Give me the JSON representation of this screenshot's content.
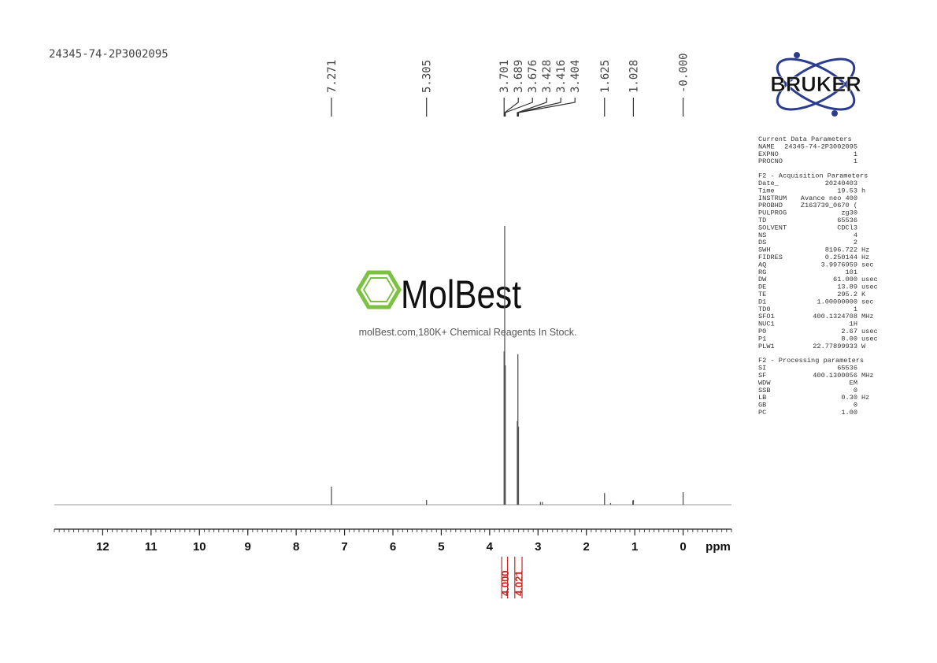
{
  "chart_data": {
    "type": "nmr",
    "title": "24345-74-2P3002095",
    "x_label": "ppm",
    "xlim": [
      13,
      -1
    ],
    "xticks": [
      12,
      11,
      10,
      9,
      8,
      7,
      6,
      5,
      4,
      3,
      2,
      1,
      0
    ],
    "minor_tick_interval": 0.1,
    "ylim": [
      0,
      100
    ],
    "color": "#555555",
    "signals": {
      "x": [
        7.271,
        5.305,
        3.701,
        3.689,
        3.676,
        3.428,
        3.416,
        3.404,
        2.95,
        2.91,
        1.625,
        1.5,
        1.04,
        1.028,
        0
      ],
      "values": [
        6.5,
        1.7,
        55,
        100,
        50,
        30,
        54,
        28,
        1,
        1,
        4.2,
        0.6,
        1.5,
        1.7,
        4.5
      ]
    },
    "peak_labels": [
      7.271,
      5.305,
      3.701,
      3.689,
      3.676,
      3.428,
      3.416,
      3.404,
      1.625,
      1.028,
      {
        "value": 0,
        "label": "-0.000"
      }
    ],
    "integrals": {
      "color": "#cc2222",
      "from": [
        3.75,
        3.48
      ],
      "to": [
        3.63,
        3.33
      ],
      "values": [
        {
          "value": 4,
          "label": "4.000"
        },
        4.021
      ]
    }
  },
  "brand": "BRUKER",
  "watermark": {
    "name": "MolBest",
    "text": "molBest.com,180K+ Chemical Reagents In Stock."
  },
  "parameters": [
    {
      "title": "Current Data Parameters",
      "rows": [
        [
          "NAME",
          "24345-74-2P3002095"
        ],
        [
          "EXPNO",
          "1"
        ],
        [
          "PROCNO",
          "1"
        ]
      ]
    },
    {
      "title": "F2 - Acquisition Parameters",
      "rows": [
        [
          "Date_",
          "20240403"
        ],
        [
          "Time",
          "19.53",
          "h"
        ],
        [
          "INSTRUM",
          "Avance neo 400"
        ],
        [
          "PROBHD",
          "Z163739_0670 ("
        ],
        [
          "PULPROG",
          "zg30"
        ],
        [
          "TD",
          "65536"
        ],
        [
          "SOLVENT",
          "CDCl3"
        ],
        [
          "NS",
          "4"
        ],
        [
          "DS",
          "2"
        ],
        [
          "SWH",
          "8196.722",
          "Hz"
        ],
        [
          "FIDRES",
          "0.250144",
          "Hz"
        ],
        [
          "AQ",
          "3.9976959",
          "sec"
        ],
        [
          "RG",
          "101"
        ],
        [
          "DW",
          "61.000",
          "usec"
        ],
        [
          "DE",
          "13.89",
          "usec"
        ],
        [
          "TE",
          "295.2",
          "K"
        ],
        [
          "D1",
          "1.00000000",
          "sec"
        ],
        [
          "TD0",
          "1"
        ],
        [
          "SFO1",
          "400.1324708",
          "MHz"
        ],
        [
          "NUC1",
          "1H"
        ],
        [
          "P0",
          "2.67",
          "usec"
        ],
        [
          "P1",
          "8.00",
          "usec"
        ],
        [
          "PLW1",
          "22.77899933",
          "W"
        ]
      ]
    },
    {
      "title": "F2 - Processing parameters",
      "rows": [
        [
          "SI",
          "65536"
        ],
        [
          "SF",
          "400.1300056",
          "MHz"
        ],
        [
          "WDW",
          "EM"
        ],
        [
          "SSB",
          "0"
        ],
        [
          "LB",
          "0.30",
          "Hz"
        ],
        [
          "GB",
          "0"
        ],
        [
          "PC",
          "1.00"
        ]
      ]
    }
  ]
}
